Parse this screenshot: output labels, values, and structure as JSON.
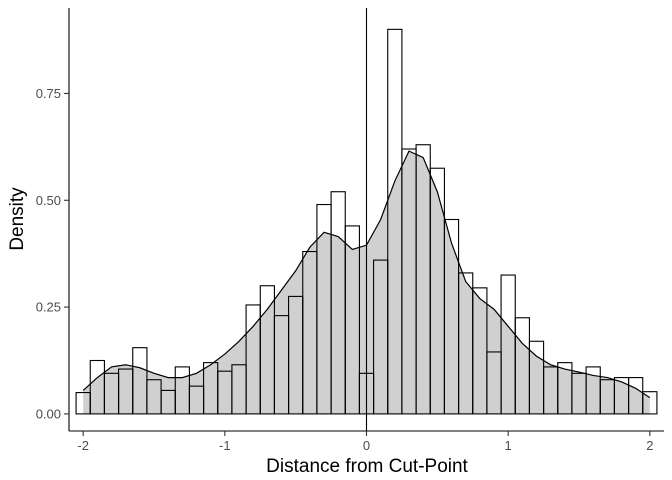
{
  "chart_data": {
    "type": "bar",
    "subtype": "histogram-with-density",
    "title": "",
    "xlabel": "Distance from Cut-Point",
    "ylabel": "Density",
    "xlim": [
      -2.1,
      2.1
    ],
    "ylim": [
      -0.04,
      0.95
    ],
    "x_ticks": [
      -2,
      -1,
      0,
      1,
      2
    ],
    "x_tick_labels": [
      "-2",
      "-1",
      "0",
      "1",
      "2"
    ],
    "y_ticks": [
      0.0,
      0.25,
      0.5,
      0.75
    ],
    "y_tick_labels": [
      "0.00",
      "0.25",
      "0.50",
      "0.75"
    ],
    "bin_width": 0.1,
    "grid": false,
    "reference_line_x": 0,
    "histogram_bins": [
      {
        "x0": -2.05,
        "x1": -1.95,
        "density": 0.05
      },
      {
        "x0": -1.95,
        "x1": -1.85,
        "density": 0.125
      },
      {
        "x0": -1.85,
        "x1": -1.75,
        "density": 0.095
      },
      {
        "x0": -1.75,
        "x1": -1.65,
        "density": 0.105
      },
      {
        "x0": -1.65,
        "x1": -1.55,
        "density": 0.155
      },
      {
        "x0": -1.55,
        "x1": -1.45,
        "density": 0.08
      },
      {
        "x0": -1.45,
        "x1": -1.35,
        "density": 0.055
      },
      {
        "x0": -1.35,
        "x1": -1.25,
        "density": 0.11
      },
      {
        "x0": -1.25,
        "x1": -1.15,
        "density": 0.065
      },
      {
        "x0": -1.15,
        "x1": -1.05,
        "density": 0.12
      },
      {
        "x0": -1.05,
        "x1": -0.95,
        "density": 0.1
      },
      {
        "x0": -0.95,
        "x1": -0.85,
        "density": 0.115
      },
      {
        "x0": -0.85,
        "x1": -0.75,
        "density": 0.255
      },
      {
        "x0": -0.75,
        "x1": -0.65,
        "density": 0.3
      },
      {
        "x0": -0.65,
        "x1": -0.55,
        "density": 0.23
      },
      {
        "x0": -0.55,
        "x1": -0.45,
        "density": 0.275
      },
      {
        "x0": -0.45,
        "x1": -0.35,
        "density": 0.38
      },
      {
        "x0": -0.35,
        "x1": -0.25,
        "density": 0.49
      },
      {
        "x0": -0.25,
        "x1": -0.15,
        "density": 0.52
      },
      {
        "x0": -0.15,
        "x1": -0.05,
        "density": 0.44
      },
      {
        "x0": -0.05,
        "x1": 0.05,
        "density": 0.095
      },
      {
        "x0": 0.05,
        "x1": 0.15,
        "density": 0.36
      },
      {
        "x0": 0.15,
        "x1": 0.25,
        "density": 0.9
      },
      {
        "x0": 0.25,
        "x1": 0.35,
        "density": 0.62
      },
      {
        "x0": 0.35,
        "x1": 0.45,
        "density": 0.63
      },
      {
        "x0": 0.45,
        "x1": 0.55,
        "density": 0.575
      },
      {
        "x0": 0.55,
        "x1": 0.65,
        "density": 0.455
      },
      {
        "x0": 0.65,
        "x1": 0.75,
        "density": 0.33
      },
      {
        "x0": 0.75,
        "x1": 0.85,
        "density": 0.295
      },
      {
        "x0": 0.85,
        "x1": 0.95,
        "density": 0.145
      },
      {
        "x0": 0.95,
        "x1": 1.05,
        "density": 0.325
      },
      {
        "x0": 1.05,
        "x1": 1.15,
        "density": 0.225
      },
      {
        "x0": 1.15,
        "x1": 1.25,
        "density": 0.17
      },
      {
        "x0": 1.25,
        "x1": 1.35,
        "density": 0.11
      },
      {
        "x0": 1.35,
        "x1": 1.45,
        "density": 0.12
      },
      {
        "x0": 1.45,
        "x1": 1.55,
        "density": 0.095
      },
      {
        "x0": 1.55,
        "x1": 1.65,
        "density": 0.11
      },
      {
        "x0": 1.65,
        "x1": 1.75,
        "density": 0.08
      },
      {
        "x0": 1.75,
        "x1": 1.85,
        "density": 0.085
      },
      {
        "x0": 1.85,
        "x1": 1.95,
        "density": 0.085
      },
      {
        "x0": 1.95,
        "x1": 2.05,
        "density": 0.052
      }
    ],
    "density_curve": {
      "x": [
        -2.0,
        -1.9,
        -1.8,
        -1.7,
        -1.6,
        -1.5,
        -1.4,
        -1.3,
        -1.2,
        -1.1,
        -1.0,
        -0.9,
        -0.8,
        -0.7,
        -0.6,
        -0.5,
        -0.4,
        -0.3,
        -0.2,
        -0.1,
        0.0,
        0.1,
        0.2,
        0.3,
        0.4,
        0.5,
        0.6,
        0.7,
        0.8,
        0.9,
        1.0,
        1.1,
        1.2,
        1.3,
        1.4,
        1.5,
        1.6,
        1.7,
        1.8,
        1.9,
        2.0
      ],
      "y": [
        0.055,
        0.085,
        0.11,
        0.115,
        0.108,
        0.095,
        0.085,
        0.085,
        0.095,
        0.115,
        0.14,
        0.17,
        0.205,
        0.245,
        0.29,
        0.335,
        0.39,
        0.425,
        0.415,
        0.385,
        0.395,
        0.455,
        0.545,
        0.615,
        0.6,
        0.52,
        0.4,
        0.31,
        0.27,
        0.245,
        0.205,
        0.165,
        0.135,
        0.115,
        0.105,
        0.098,
        0.09,
        0.085,
        0.075,
        0.06,
        0.038
      ]
    }
  }
}
